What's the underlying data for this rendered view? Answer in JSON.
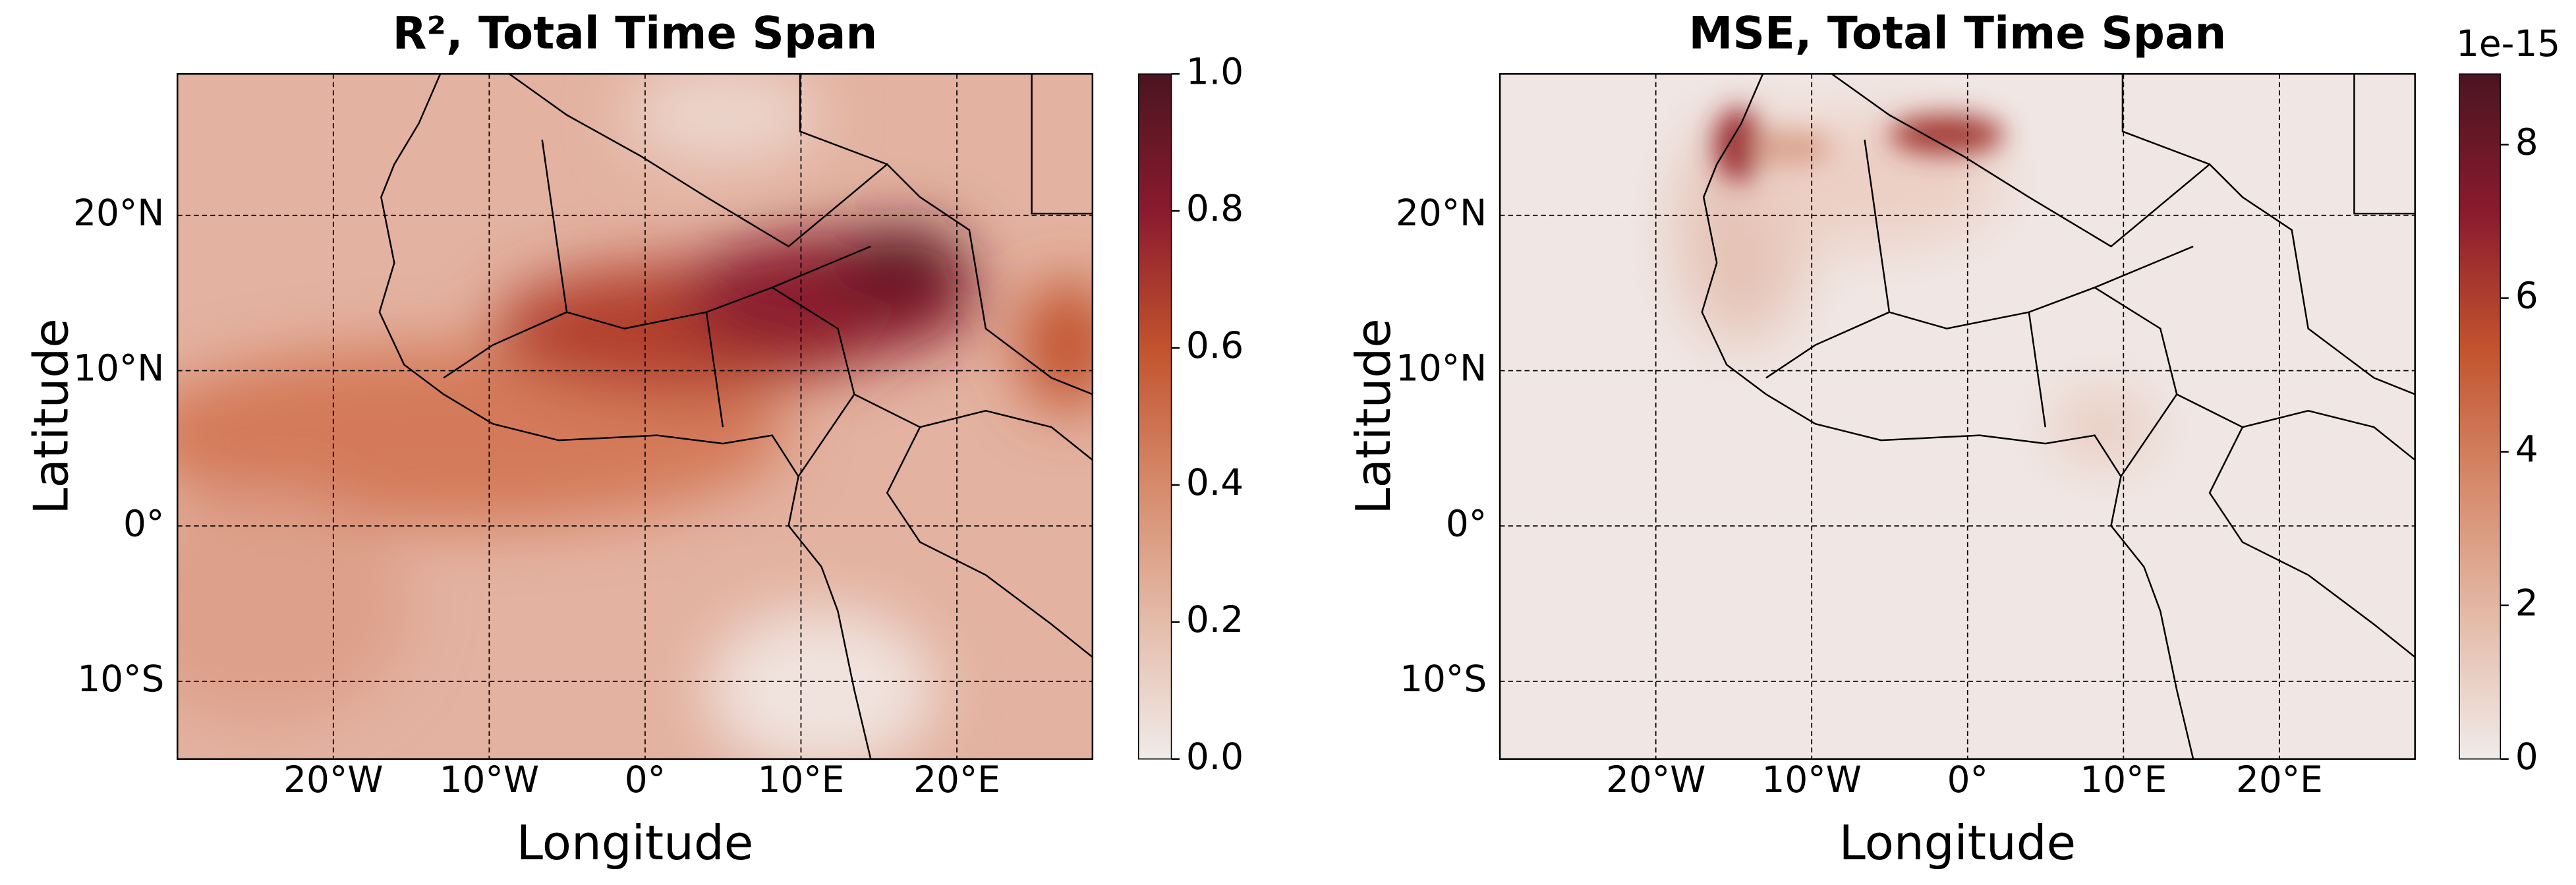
{
  "panels": [
    {
      "title": "R², Total Time Span",
      "xlabel": "Longitude",
      "ylabel": "Latitude",
      "xlim": [
        -30,
        28.7
      ],
      "ylim": [
        -15,
        29.1
      ],
      "xticks": [
        {
          "value": -20,
          "label": "20°W"
        },
        {
          "value": -10,
          "label": "10°W"
        },
        {
          "value": 0,
          "label": "0°"
        },
        {
          "value": 10,
          "label": "10°E"
        },
        {
          "value": 20,
          "label": "20°E"
        }
      ],
      "yticks": [
        {
          "value": 20,
          "label": "20°N"
        },
        {
          "value": 10,
          "label": "10°N"
        },
        {
          "value": 0,
          "label": "0°"
        },
        {
          "value": -10,
          "label": "10°S"
        }
      ],
      "colorbar": {
        "lim": [
          0,
          1
        ],
        "ticks": [
          {
            "value": 0,
            "label": "0.0"
          },
          {
            "value": 0.2,
            "label": "0.2"
          },
          {
            "value": 0.4,
            "label": "0.4"
          },
          {
            "value": 0.6,
            "label": "0.6"
          },
          {
            "value": 0.8,
            "label": "0.8"
          },
          {
            "value": 1,
            "label": "1.0"
          }
        ]
      }
    },
    {
      "title": "MSE, Total Time Span",
      "xlabel": "Longitude",
      "ylabel": "Latitude",
      "xlim": [
        -30,
        28.7
      ],
      "ylim": [
        -15,
        29.1
      ],
      "xticks": [
        {
          "value": -20,
          "label": "20°W"
        },
        {
          "value": -10,
          "label": "10°W"
        },
        {
          "value": 0,
          "label": "0°"
        },
        {
          "value": 10,
          "label": "10°E"
        },
        {
          "value": 20,
          "label": "20°E"
        }
      ],
      "yticks": [
        {
          "value": 20,
          "label": "20°N"
        },
        {
          "value": 10,
          "label": "10°N"
        },
        {
          "value": 0,
          "label": "0°"
        },
        {
          "value": -10,
          "label": "10°S"
        }
      ],
      "colorbar": {
        "lim": [
          0,
          8.92
        ],
        "ticks": [
          0,
          2,
          4,
          6,
          8
        ],
        "offset_label": "1e-15"
      }
    }
  ]
}
